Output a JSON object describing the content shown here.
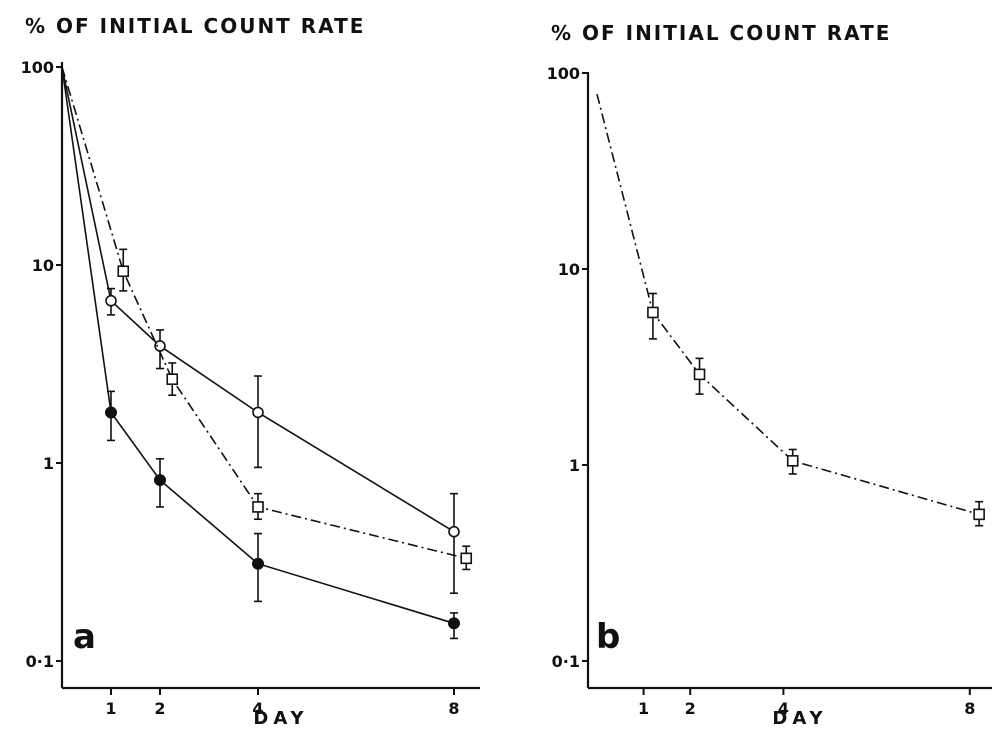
{
  "chart_data": [
    {
      "type": "line",
      "panel_label": "a",
      "ylabel": "% OF INITIAL COUNT RATE",
      "xlabel": "DAY",
      "y_scale": "log",
      "ylim": [
        0.1,
        100
      ],
      "y_ticks": [
        0.1,
        1,
        10,
        100
      ],
      "y_tick_labels": [
        "0·1",
        "1",
        "10",
        "100"
      ],
      "x_ticks": [
        1,
        2,
        4,
        8
      ],
      "x_tick_labels": [
        "1",
        "2",
        "4",
        "8"
      ],
      "series": [
        {
          "marker": "open-circle",
          "line": "solid",
          "points": [
            {
              "x": 0,
              "y": 100
            },
            {
              "x": 1,
              "y": 6.6,
              "lo": 5.6,
              "hi": 7.6
            },
            {
              "x": 2,
              "y": 3.9,
              "lo": 3.0,
              "hi": 4.7
            },
            {
              "x": 4,
              "y": 1.8,
              "lo": 0.95,
              "hi": 2.75
            },
            {
              "x": 8,
              "y": 0.45,
              "lo": 0.22,
              "hi": 0.7
            }
          ]
        },
        {
          "marker": "filled-circle",
          "line": "solid",
          "points": [
            {
              "x": 0,
              "y": 100
            },
            {
              "x": 1,
              "y": 1.8,
              "lo": 1.3,
              "hi": 2.3
            },
            {
              "x": 2,
              "y": 0.82,
              "lo": 0.6,
              "hi": 1.05
            },
            {
              "x": 4,
              "y": 0.31,
              "lo": 0.2,
              "hi": 0.44
            },
            {
              "x": 8,
              "y": 0.155,
              "lo": 0.13,
              "hi": 0.175
            }
          ]
        },
        {
          "marker": "open-square",
          "line": "dash-dot",
          "points": [
            {
              "x": 0,
              "y": 100
            },
            {
              "x": 1.25,
              "y": 9.3,
              "lo": 7.4,
              "hi": 12
            },
            {
              "x": 2.25,
              "y": 2.65,
              "lo": 2.2,
              "hi": 3.2
            },
            {
              "x": 4,
              "y": 0.6,
              "lo": 0.52,
              "hi": 0.7
            },
            {
              "x": 8.25,
              "y": 0.33,
              "lo": 0.29,
              "hi": 0.38
            }
          ]
        }
      ]
    },
    {
      "type": "line",
      "panel_label": "b",
      "ylabel": "% OF INITIAL COUNT RATE",
      "xlabel": "DAY",
      "y_scale": "log",
      "ylim": [
        0.1,
        100
      ],
      "y_ticks": [
        0.1,
        1,
        10,
        100
      ],
      "y_tick_labels": [
        "0·1",
        "1",
        "10",
        "100"
      ],
      "x_ticks": [
        1,
        2,
        4,
        8
      ],
      "x_tick_labels": [
        "1",
        "2",
        "4",
        "8"
      ],
      "series": [
        {
          "marker": "open-square",
          "line": "dash-dot",
          "points": [
            {
              "x": 0,
              "y": 78
            },
            {
              "x": 1.2,
              "y": 6.0,
              "lo": 4.4,
              "hi": 7.5
            },
            {
              "x": 2.2,
              "y": 2.9,
              "lo": 2.3,
              "hi": 3.5
            },
            {
              "x": 4.2,
              "y": 1.05,
              "lo": 0.9,
              "hi": 1.2
            },
            {
              "x": 8.2,
              "y": 0.56,
              "lo": 0.49,
              "hi": 0.65
            }
          ]
        }
      ]
    }
  ]
}
